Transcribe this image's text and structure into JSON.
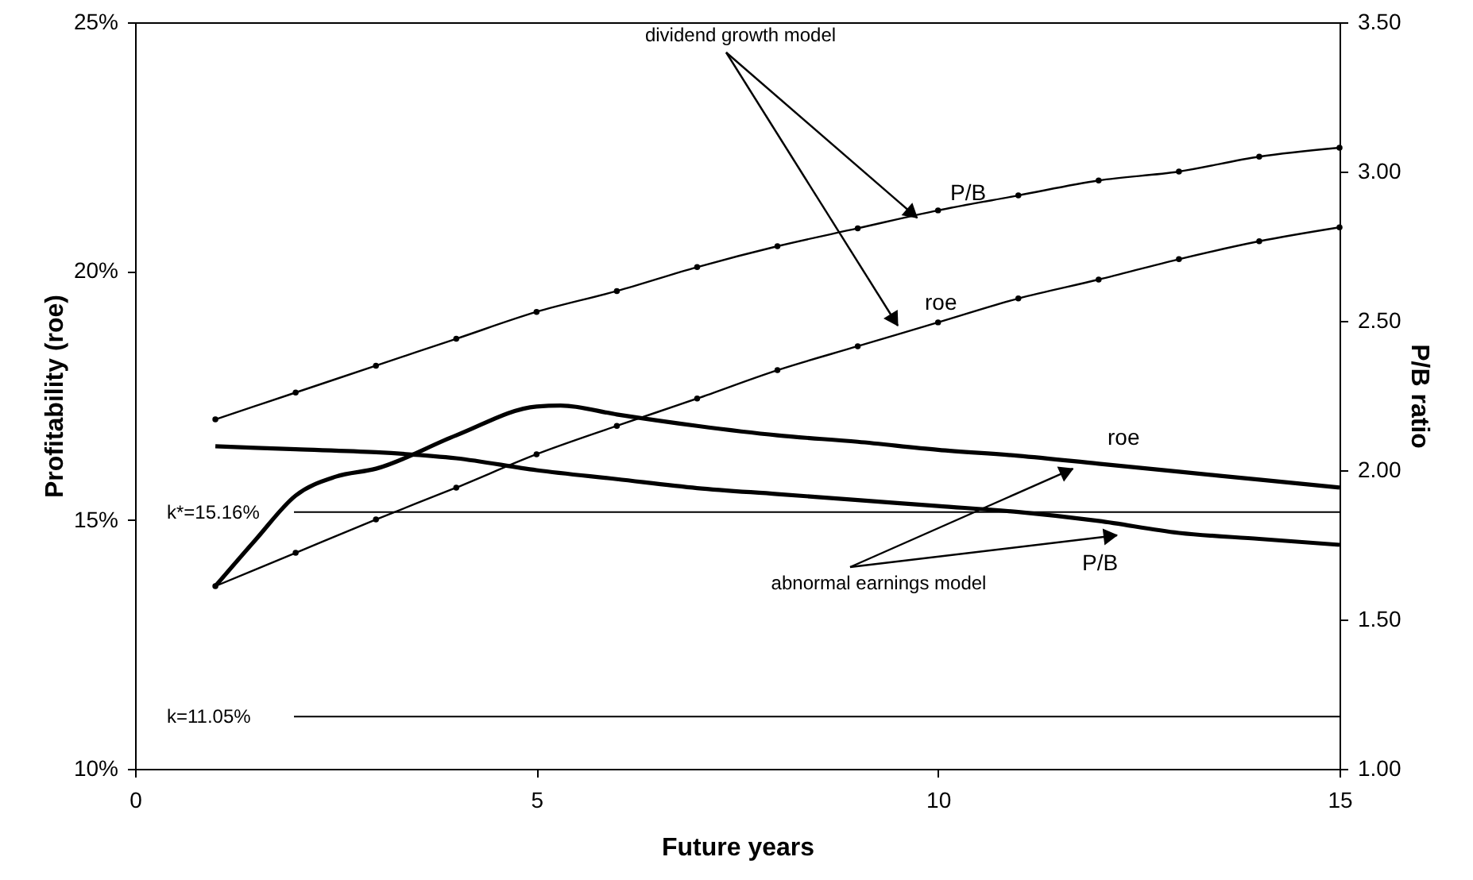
{
  "chart_data": {
    "type": "line",
    "xlabel": "Future years",
    "ylabel": "Profitability (roe)",
    "y2label": "P/B ratio",
    "x": [
      1,
      2,
      3,
      4,
      5,
      6,
      7,
      8,
      9,
      10,
      11,
      12,
      13,
      14,
      15
    ],
    "xlim": [
      0,
      15
    ],
    "xticks": [
      0,
      5,
      10,
      15
    ],
    "ylim": [
      10,
      25
    ],
    "yticks": [
      {
        "value": 10,
        "label": "10%"
      },
      {
        "value": 15,
        "label": "15%"
      },
      {
        "value": 20,
        "label": "20%"
      },
      {
        "value": 25,
        "label": "25%"
      }
    ],
    "y2lim": [
      1,
      3.5
    ],
    "y2ticks": [
      {
        "value": 1,
        "label": "1.00"
      },
      {
        "value": 1.5,
        "label": "1.50"
      },
      {
        "value": 2,
        "label": "2.00"
      },
      {
        "value": 2.5,
        "label": "2.50"
      },
      {
        "value": 3,
        "label": "3.00"
      },
      {
        "value": 3.5,
        "label": "3.50"
      }
    ],
    "series": [
      {
        "name": "P/B",
        "color": "#000000",
        "axis": "y2",
        "marker": "circle",
        "values": [
          2.17,
          2.26,
          2.35,
          2.44,
          2.53,
          2.6,
          2.68,
          2.75,
          2.81,
          2.87,
          2.92,
          2.97,
          3.0,
          3.05,
          3.08
        ]
      },
      {
        "name": "roe",
        "color": "#000000",
        "marker": "circle",
        "values": [
          13.67,
          14.34,
          15.01,
          15.65,
          16.32,
          16.89,
          17.44,
          18.01,
          18.49,
          18.97,
          19.45,
          19.83,
          20.24,
          20.6,
          20.88
        ]
      },
      {
        "name": "roe",
        "color": "#000000",
        "marker": "none",
        "x": [
          1,
          1.5,
          2,
          2.5,
          3,
          4,
          5,
          5.3,
          6,
          7,
          8,
          9,
          10,
          11,
          12,
          13,
          14,
          15
        ],
        "values": [
          13.67,
          14.6,
          15.49,
          15.87,
          16.03,
          16.7,
          17.28,
          17.3,
          17.12,
          16.89,
          16.7,
          16.57,
          16.41,
          16.29,
          16.13,
          15.97,
          15.81,
          15.65
        ]
      },
      {
        "name": "P/B",
        "color": "#000000",
        "axis": "y2",
        "marker": "none",
        "values": [
          2.08,
          2.07,
          2.06,
          2.04,
          2.0,
          1.97,
          1.94,
          1.92,
          1.9,
          1.88,
          1.86,
          1.83,
          1.79,
          1.77,
          1.75
        ]
      }
    ],
    "ref_lines": [
      {
        "axis": "y",
        "value": 15.16,
        "label": "k*=15.16%",
        "color": "#000000"
      },
      {
        "axis": "y",
        "value": 11.05,
        "label": "k=11.05%",
        "color": "#000000"
      }
    ],
    "annotations": [
      {
        "text": "dividend growth model",
        "x": 9.74,
        "y": 21.07
      },
      {
        "text": "abnormal earnings model",
        "x": 11.68,
        "y": 16.03
      }
    ],
    "grid": false,
    "line_style": "solid"
  }
}
